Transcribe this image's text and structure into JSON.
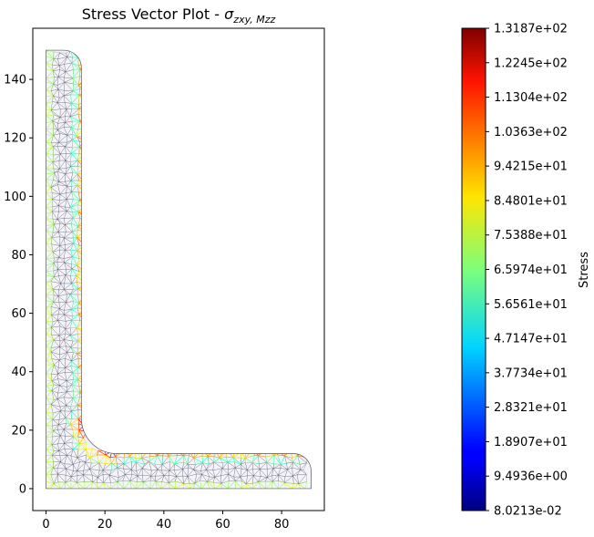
{
  "chart_data": {
    "type": "vector-contour",
    "title": "Stress Vector Plot - ",
    "title_math": "σ",
    "title_subscript": "zxy, Mzz",
    "x_ticks": [
      0,
      20,
      40,
      60,
      80
    ],
    "y_ticks": [
      0,
      20,
      40,
      60,
      80,
      100,
      120,
      140
    ],
    "xlim": [
      -4.5,
      94.5
    ],
    "ylim": [
      -7.5,
      157.5
    ],
    "geometry": {
      "shape": "L-section",
      "leg_height": 150,
      "leg_width": 90,
      "thickness": 12,
      "root_radius": 12,
      "toe_radius": 6
    },
    "colorbar": {
      "label": "Stress",
      "colormap": "jet",
      "min": 0.080213,
      "max": 131.87,
      "tick_labels": [
        "1.3187e+02",
        "1.2245e+02",
        "1.1304e+02",
        "1.0363e+02",
        "9.4215e+01",
        "8.4801e+01",
        "7.5388e+01",
        "6.5974e+01",
        "5.6561e+01",
        "4.7147e+01",
        "3.7734e+01",
        "2.8321e+01",
        "1.8907e+01",
        "9.4936e+00",
        "8.0213e-02"
      ]
    }
  }
}
